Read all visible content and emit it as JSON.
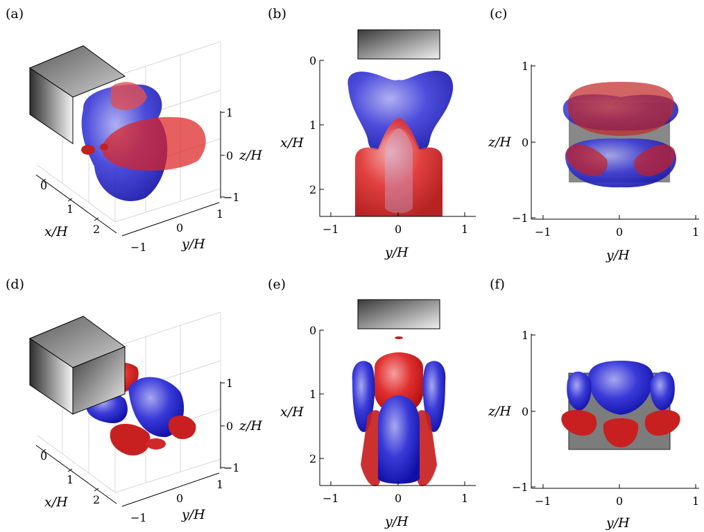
{
  "colors": {
    "positive": "#d62020",
    "negative": "#2a2ad0",
    "body_dark": "#2e2e2e",
    "body_light": "#f2f2f2"
  },
  "panels": {
    "a": {
      "label": "(a)"
    },
    "b": {
      "label": "(b)"
    },
    "c": {
      "label": "(c)"
    },
    "d": {
      "label": "(d)"
    },
    "e": {
      "label": "(e)"
    },
    "f": {
      "label": "(f)"
    }
  },
  "views3d": {
    "x_label": "x/H",
    "y_label": "y/H",
    "z_label": "z/H",
    "x_ticks": [
      "0",
      "1",
      "2"
    ],
    "y_ticks": [
      "−1",
      "0",
      "1"
    ],
    "z_ticks": [
      "1",
      "0",
      "−1"
    ]
  },
  "views_top": {
    "x_label": "y/H",
    "y_label": "x/H",
    "x_ticks": [
      "−1",
      "0",
      "1"
    ],
    "y_ticks": [
      "0",
      "1",
      "2"
    ]
  },
  "views_front": {
    "x_label": "y/H",
    "y_label": "z/H",
    "x_ticks": [
      "−1",
      "0",
      "1"
    ],
    "y_ticks": [
      "1",
      "0",
      "−1"
    ]
  }
}
